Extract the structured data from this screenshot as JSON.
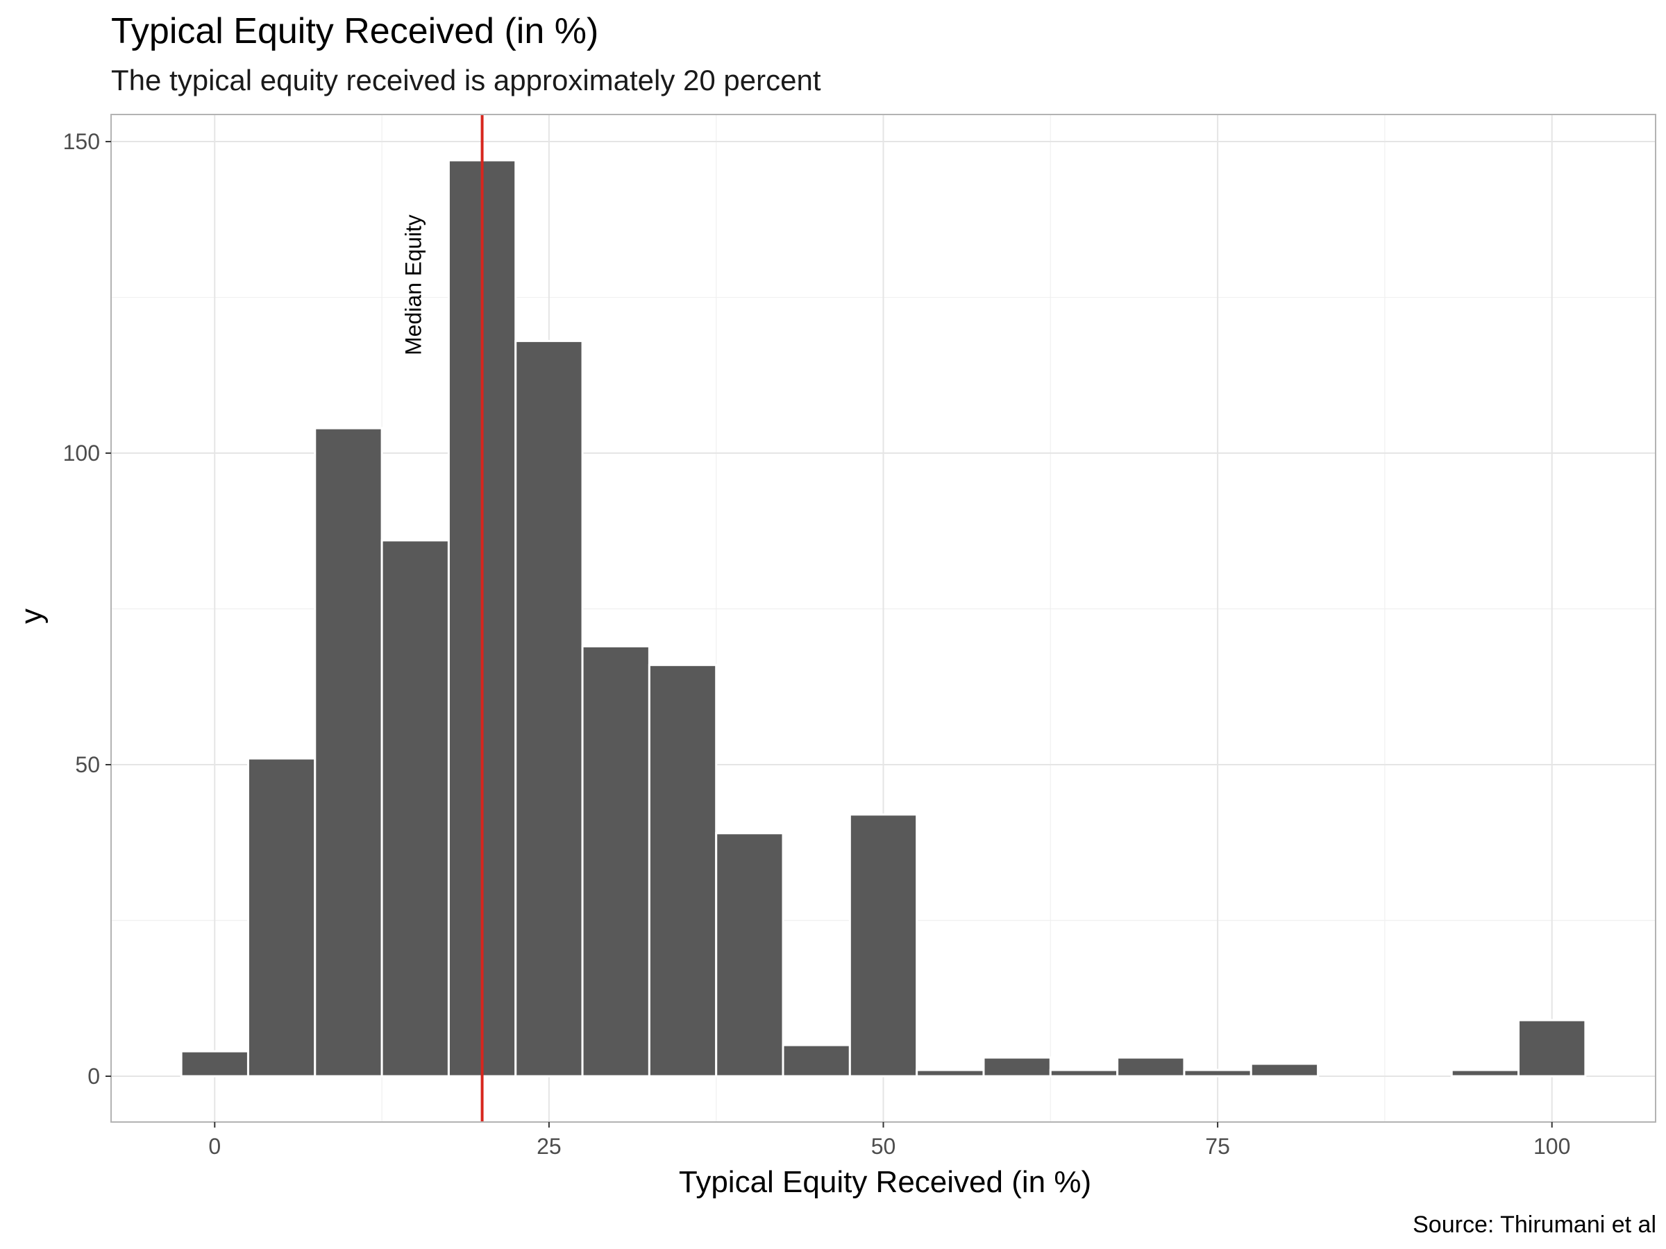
{
  "chart_data": {
    "type": "bar",
    "title": "Typical Equity Received (in %)",
    "subtitle": "The typical equity received is approximately 20 percent",
    "xlabel": "Typical Equity Received (in %)",
    "ylabel": "y",
    "caption": "Source: Thirumani et al",
    "xlim": [
      -7.75,
      107.75
    ],
    "ylim": [
      -7.35,
      154.35
    ],
    "x_ticks": [
      0,
      25,
      50,
      75,
      100
    ],
    "y_ticks": [
      0,
      50,
      100,
      150
    ],
    "bin_width": 5,
    "bins": [
      {
        "x": 0,
        "count": 4
      },
      {
        "x": 5,
        "count": 51
      },
      {
        "x": 10,
        "count": 104
      },
      {
        "x": 15,
        "count": 86
      },
      {
        "x": 20,
        "count": 147
      },
      {
        "x": 25,
        "count": 118
      },
      {
        "x": 30,
        "count": 69
      },
      {
        "x": 35,
        "count": 66
      },
      {
        "x": 40,
        "count": 39
      },
      {
        "x": 45,
        "count": 5
      },
      {
        "x": 50,
        "count": 42
      },
      {
        "x": 55,
        "count": 1
      },
      {
        "x": 60,
        "count": 3
      },
      {
        "x": 65,
        "count": 1
      },
      {
        "x": 70,
        "count": 3
      },
      {
        "x": 75,
        "count": 1
      },
      {
        "x": 80,
        "count": 2
      },
      {
        "x": 85,
        "count": 0
      },
      {
        "x": 90,
        "count": 0
      },
      {
        "x": 95,
        "count": 1
      },
      {
        "x": 100,
        "count": 9
      }
    ],
    "median_line": {
      "x": 20,
      "label": "Median Equity",
      "color": "#d7261e"
    },
    "bar_color": "#595959",
    "grid": true,
    "legend": "none"
  }
}
